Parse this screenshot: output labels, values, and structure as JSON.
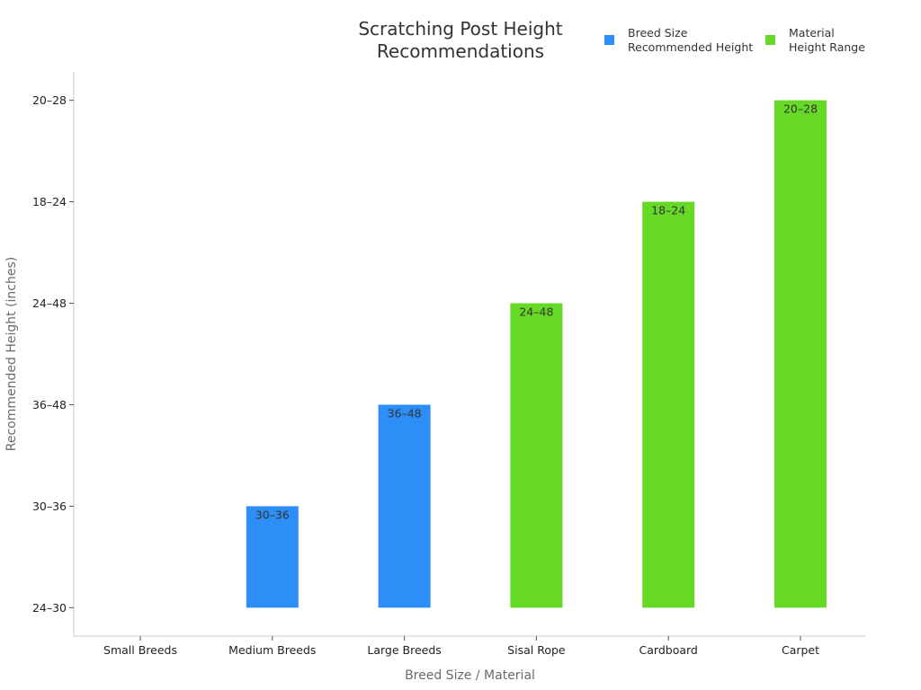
{
  "chart_data": {
    "type": "bar",
    "title_lines": [
      "Scratching Post Height",
      "Recommendations"
    ],
    "xlabel": "Breed Size / Material",
    "ylabel": "Recommended Height (inches)",
    "categories": [
      "Small Breeds",
      "Medium Breeds",
      "Large Breeds",
      "Sisal Rope",
      "Cardboard",
      "Carpet"
    ],
    "y_tick_labels": [
      "24–30",
      "30–36",
      "36–48",
      "24–48",
      "18–24",
      "20–28"
    ],
    "legend_position": "top-right",
    "grid": false,
    "series": [
      {
        "name_lines": [
          "Breed Size",
          "Recommended Height"
        ],
        "color": "#2d8ef7",
        "values": [
          0,
          1,
          2,
          null,
          null,
          null
        ],
        "labels": [
          "",
          "30–36",
          "36–48",
          "",
          "",
          ""
        ]
      },
      {
        "name_lines": [
          "Material",
          "Height Range"
        ],
        "color": "#66d926",
        "values": [
          null,
          null,
          null,
          3,
          4,
          5
        ],
        "labels": [
          "",
          "",
          "",
          "24–48",
          "18–24",
          "20–28"
        ]
      }
    ],
    "ylim": [
      -0.28,
      5.28
    ]
  }
}
